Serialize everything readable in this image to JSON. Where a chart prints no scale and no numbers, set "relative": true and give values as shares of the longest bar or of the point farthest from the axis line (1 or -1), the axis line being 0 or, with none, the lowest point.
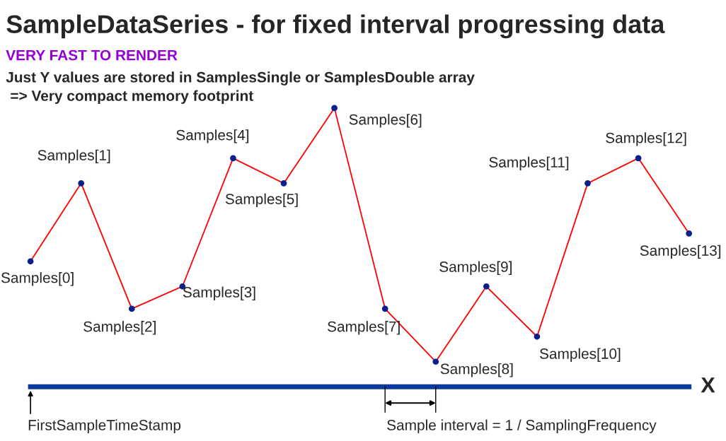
{
  "chart_data": {
    "type": "line",
    "title": "SampleDataSeries - for fixed interval progressing data",
    "subtitle": "VERY FAST TO RENDER",
    "xlabel": "X",
    "categories": [
      null,
      null,
      null,
      null,
      null,
      null,
      null,
      null,
      null,
      null,
      null,
      null,
      null,
      null
    ],
    "relative": true,
    "series": [
      {
        "color": "#ff0000",
        "colors": [
          "#0a1f8f",
          "#0a1f8f",
          "#0a1f8f",
          "#0a1f8f",
          "#0a1f8f",
          "#0a1f8f",
          "#0a1f8f",
          "#0a1f8f",
          "#0a1f8f",
          "#0a1f8f",
          "#0a1f8f",
          "#0a1f8f",
          "#0a1f8f",
          "#0a1f8f"
        ],
        "values": [
          0.45,
          0.73,
          0.28,
          0.36,
          0.82,
          0.73,
          1,
          0.28,
          0.09,
          0.36,
          0.18,
          0.73,
          0.82,
          0.55
        ]
      }
    ],
    "annotations": [
      "Just Y values are stored in SamplesSingle or SamplesDouble array",
      "=> Very compact memory footprint",
      "FirstSampleTimeStamp",
      "Sample interval = 1 / SamplingFrequency",
      "Samples[0]",
      "Samples[1]",
      "Samples[2]",
      "Samples[3]",
      "Samples[4]",
      "Samples[5]",
      "Samples[6]",
      "Samples[7]",
      "Samples[8]",
      "Samples[9]",
      "Samples[10]",
      "Samples[11]",
      "Samples[12]",
      "Samples[13]"
    ],
    "marker": "circle",
    "line_style": "solid",
    "grid": false,
    "legend": false
  }
}
